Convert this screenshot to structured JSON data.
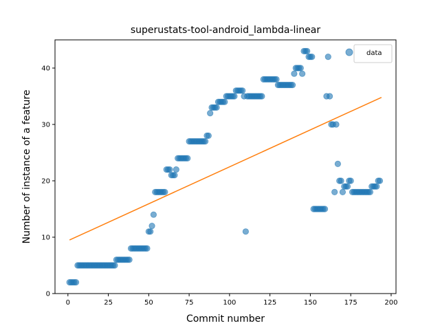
{
  "chart_data": {
    "type": "scatter",
    "title": "superustats-tool-android_lambda-linear",
    "xlabel": "Commit number",
    "ylabel": "Number of instance of a feature",
    "xlim": [
      -8,
      203
    ],
    "ylim": [
      0,
      45
    ],
    "xticks": [
      0,
      25,
      50,
      75,
      100,
      125,
      150,
      175,
      200
    ],
    "yticks": [
      0,
      10,
      20,
      30,
      40
    ],
    "legend": {
      "position": "top-right",
      "label": "data"
    },
    "colors": {
      "points": "#1f77b4",
      "fit": "#ff7f0e"
    },
    "series": [
      {
        "name": "data",
        "points": [
          [
            1,
            2
          ],
          [
            2,
            2
          ],
          [
            3,
            2
          ],
          [
            4,
            2
          ],
          [
            5,
            2
          ],
          [
            6,
            5
          ],
          [
            7,
            5
          ],
          [
            8,
            5
          ],
          [
            9,
            5
          ],
          [
            10,
            5
          ],
          [
            11,
            5
          ],
          [
            12,
            5
          ],
          [
            13,
            5
          ],
          [
            14,
            5
          ],
          [
            15,
            5
          ],
          [
            16,
            5
          ],
          [
            17,
            5
          ],
          [
            18,
            5
          ],
          [
            19,
            5
          ],
          [
            20,
            5
          ],
          [
            21,
            5
          ],
          [
            22,
            5
          ],
          [
            23,
            5
          ],
          [
            24,
            5
          ],
          [
            25,
            5
          ],
          [
            26,
            5
          ],
          [
            27,
            5
          ],
          [
            28,
            5
          ],
          [
            29,
            5
          ],
          [
            30,
            6
          ],
          [
            31,
            6
          ],
          [
            32,
            6
          ],
          [
            33,
            6
          ],
          [
            34,
            6
          ],
          [
            35,
            6
          ],
          [
            36,
            6
          ],
          [
            37,
            6
          ],
          [
            38,
            6
          ],
          [
            39,
            8
          ],
          [
            40,
            8
          ],
          [
            41,
            8
          ],
          [
            42,
            8
          ],
          [
            43,
            8
          ],
          [
            44,
            8
          ],
          [
            45,
            8
          ],
          [
            46,
            8
          ],
          [
            47,
            8
          ],
          [
            48,
            8
          ],
          [
            49,
            8
          ],
          [
            50,
            11
          ],
          [
            51,
            11
          ],
          [
            52,
            12
          ],
          [
            53,
            14
          ],
          [
            54,
            18
          ],
          [
            55,
            18
          ],
          [
            56,
            18
          ],
          [
            57,
            18
          ],
          [
            58,
            18
          ],
          [
            59,
            18
          ],
          [
            60,
            18
          ],
          [
            61,
            22
          ],
          [
            62,
            22
          ],
          [
            63,
            22
          ],
          [
            64,
            21
          ],
          [
            65,
            21
          ],
          [
            66,
            21
          ],
          [
            67,
            22
          ],
          [
            68,
            24
          ],
          [
            69,
            24
          ],
          [
            70,
            24
          ],
          [
            71,
            24
          ],
          [
            72,
            24
          ],
          [
            73,
            24
          ],
          [
            74,
            24
          ],
          [
            75,
            27
          ],
          [
            76,
            27
          ],
          [
            77,
            27
          ],
          [
            78,
            27
          ],
          [
            79,
            27
          ],
          [
            80,
            27
          ],
          [
            81,
            27
          ],
          [
            82,
            27
          ],
          [
            83,
            27
          ],
          [
            84,
            27
          ],
          [
            85,
            27
          ],
          [
            86,
            28
          ],
          [
            87,
            28
          ],
          [
            88,
            32
          ],
          [
            89,
            33
          ],
          [
            90,
            33
          ],
          [
            91,
            33
          ],
          [
            92,
            33
          ],
          [
            93,
            34
          ],
          [
            94,
            34
          ],
          [
            95,
            34
          ],
          [
            96,
            34
          ],
          [
            97,
            34
          ],
          [
            98,
            35
          ],
          [
            99,
            35
          ],
          [
            100,
            35
          ],
          [
            101,
            35
          ],
          [
            102,
            35
          ],
          [
            103,
            35
          ],
          [
            104,
            36
          ],
          [
            105,
            36
          ],
          [
            106,
            36
          ],
          [
            107,
            36
          ],
          [
            108,
            36
          ],
          [
            110,
            11
          ],
          [
            109,
            35
          ],
          [
            111,
            35
          ],
          [
            112,
            35
          ],
          [
            113,
            35
          ],
          [
            114,
            35
          ],
          [
            115,
            35
          ],
          [
            116,
            35
          ],
          [
            117,
            35
          ],
          [
            118,
            35
          ],
          [
            119,
            35
          ],
          [
            120,
            35
          ],
          [
            121,
            38
          ],
          [
            122,
            38
          ],
          [
            123,
            38
          ],
          [
            124,
            38
          ],
          [
            125,
            38
          ],
          [
            126,
            38
          ],
          [
            127,
            38
          ],
          [
            128,
            38
          ],
          [
            129,
            38
          ],
          [
            130,
            37
          ],
          [
            131,
            37
          ],
          [
            132,
            37
          ],
          [
            133,
            37
          ],
          [
            134,
            37
          ],
          [
            135,
            37
          ],
          [
            136,
            37
          ],
          [
            137,
            37
          ],
          [
            138,
            37
          ],
          [
            139,
            37
          ],
          [
            140,
            39
          ],
          [
            141,
            40
          ],
          [
            142,
            40
          ],
          [
            143,
            40
          ],
          [
            144,
            40
          ],
          [
            145,
            39
          ],
          [
            146,
            43
          ],
          [
            147,
            43
          ],
          [
            148,
            43
          ],
          [
            149,
            42
          ],
          [
            150,
            42
          ],
          [
            151,
            42
          ],
          [
            152,
            15
          ],
          [
            153,
            15
          ],
          [
            154,
            15
          ],
          [
            155,
            15
          ],
          [
            156,
            15
          ],
          [
            157,
            15
          ],
          [
            158,
            15
          ],
          [
            159,
            15
          ],
          [
            160,
            35
          ],
          [
            161,
            42
          ],
          [
            162,
            35
          ],
          [
            163,
            30
          ],
          [
            164,
            30
          ],
          [
            165,
            18
          ],
          [
            166,
            30
          ],
          [
            167,
            23
          ],
          [
            168,
            20
          ],
          [
            169,
            20
          ],
          [
            170,
            18
          ],
          [
            171,
            19
          ],
          [
            172,
            19
          ],
          [
            173,
            19
          ],
          [
            174,
            20
          ],
          [
            175,
            20
          ],
          [
            176,
            18
          ],
          [
            177,
            18
          ],
          [
            178,
            18
          ],
          [
            179,
            18
          ],
          [
            180,
            18
          ],
          [
            181,
            18
          ],
          [
            182,
            18
          ],
          [
            183,
            18
          ],
          [
            184,
            18
          ],
          [
            185,
            18
          ],
          [
            186,
            18
          ],
          [
            187,
            18
          ],
          [
            188,
            19
          ],
          [
            189,
            19
          ],
          [
            190,
            19
          ],
          [
            191,
            19
          ],
          [
            192,
            20
          ],
          [
            193,
            20
          ]
        ]
      },
      {
        "type": "line",
        "points": [
          [
            1,
            9.5
          ],
          [
            194,
            34.8
          ]
        ]
      }
    ]
  }
}
